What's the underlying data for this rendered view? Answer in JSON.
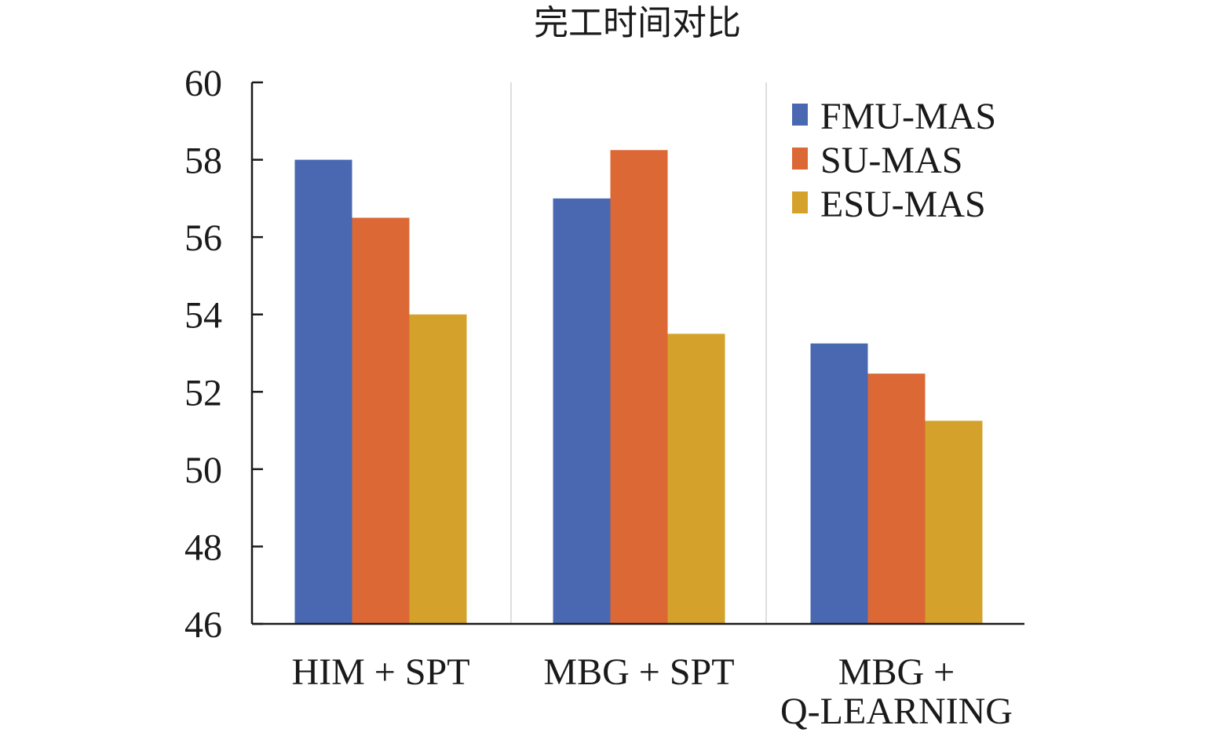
{
  "chart_data": {
    "type": "bar",
    "title": "完工时间对比",
    "xlabel": "",
    "ylabel": "",
    "categories": [
      [
        "HIM + SPT"
      ],
      [
        "MBG + SPT"
      ],
      [
        "MBG +",
        "Q-LEARNING"
      ]
    ],
    "series": [
      {
        "name": "FMU-MAS",
        "color": "#4a67b1",
        "values": [
          58.0,
          57.0,
          53.25
        ]
      },
      {
        "name": "SU-MAS",
        "color": "#dc6836",
        "values": [
          56.5,
          58.25,
          52.47
        ]
      },
      {
        "name": "ESU-MAS",
        "color": "#d4a22a",
        "values": [
          54.0,
          53.5,
          51.25
        ]
      }
    ],
    "ylim": [
      46,
      60
    ],
    "yticks": [
      46,
      48,
      50,
      52,
      54,
      56,
      58,
      60
    ],
    "grid": false,
    "category_separators": true,
    "legend_position": "top-right"
  }
}
